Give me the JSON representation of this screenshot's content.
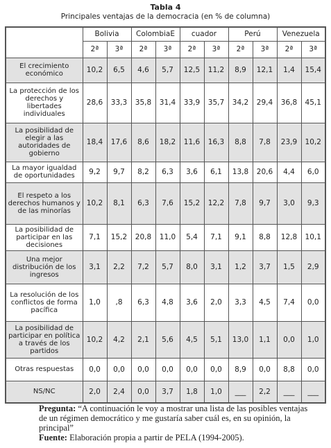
{
  "header": {
    "title": "Tabla 4",
    "subtitle": "Principales ventajas de la democracia (en % de columna)"
  },
  "table": {
    "countries": [
      "Bolivia",
      "ColombiaE",
      "cuador",
      "Perú",
      "Venezuela"
    ],
    "waves": [
      "2ª",
      "3ª",
      "2ª",
      "3ª",
      "2ª",
      "3ª",
      "2ª",
      "3ª",
      "2ª",
      "3ª"
    ],
    "rows": [
      {
        "label": "El crecimiento económico",
        "values": [
          "10,2",
          "6,5",
          "4,6",
          "5,7",
          "12,5",
          "11,2",
          "8,9",
          "12,1",
          "1,4",
          "15,4"
        ]
      },
      {
        "label": "La protección de los derechos y libertades individuales",
        "values": [
          "28,6",
          "33,3",
          "35,8",
          "31,4",
          "33,9",
          "35,7",
          "34,2",
          "29,4",
          "36,8",
          "45,1"
        ]
      },
      {
        "label": "La posibilidad de elegir a las autoridades de gobierno",
        "values": [
          "18,4",
          "17,6",
          "8,6",
          "18,2",
          "11,6",
          "16,3",
          "8,8",
          "7,8",
          "23,9",
          "10,2"
        ]
      },
      {
        "label": "La mayor igualdad de oportunidades",
        "values": [
          "9,2",
          "9,7",
          "8,2",
          "6,3",
          "3,6",
          "6,1",
          "13,8",
          "20,6",
          "4,4",
          "6,0"
        ]
      },
      {
        "label": "El respeto a los derechos humanos y de las minorías",
        "values": [
          "10,2",
          "8,1",
          "6,3",
          "7,6",
          "15,2",
          "12,2",
          "7,8",
          "9,7",
          "3,0",
          "9,3"
        ]
      },
      {
        "label": "La posibilidad de participar en las decisiones",
        "values": [
          "7,1",
          "15,2",
          "20,8",
          "11,0",
          "5,4",
          "7,1",
          "9,1",
          "8,8",
          "12,8",
          "10,1"
        ]
      },
      {
        "label": "Una mejor distribución de los ingresos",
        "values": [
          "3,1",
          "2,2",
          "7,2",
          "5,7",
          "8,0",
          "3,1",
          "1,2",
          "3,7",
          "1,5",
          "2,9"
        ]
      },
      {
        "label": "La resolución de los conflictos de forma pacífica",
        "values": [
          "1,0",
          ",8",
          "6,3",
          "4,8",
          "3,6",
          "2,0",
          "3,3",
          "4,5",
          "7,4",
          "0,0"
        ]
      },
      {
        "label": "La posibilidad de participar en política a través de los partidos",
        "values": [
          "10,2",
          "4,2",
          "2,1",
          "5,6",
          "4,5",
          "5,1",
          "13,0",
          "1,1",
          "0,0",
          "1,0"
        ]
      },
      {
        "label": "Otras respuestas",
        "values": [
          "0,0",
          "0,0",
          "0,0",
          "0,0",
          "0,0",
          "0,0",
          "8,9",
          "0,0",
          "8,8",
          "0,0"
        ]
      },
      {
        "label": "NS/NC",
        "values": [
          "2,0",
          "2,4",
          "0,0",
          "3,7",
          "1,8",
          "1,0",
          "___",
          "2,2",
          "___",
          "___"
        ]
      }
    ]
  },
  "notes": {
    "question_label": "Pregunta:",
    "question": "“A continuación le voy a mostrar una lista de las posibles ventajas de un régimen democrático y me gustaría saber cuál es, en su opinión, la principal”",
    "source_label": "Fuente:",
    "source": "Elaboración propia a partir de PELA (1994-2005)."
  }
}
